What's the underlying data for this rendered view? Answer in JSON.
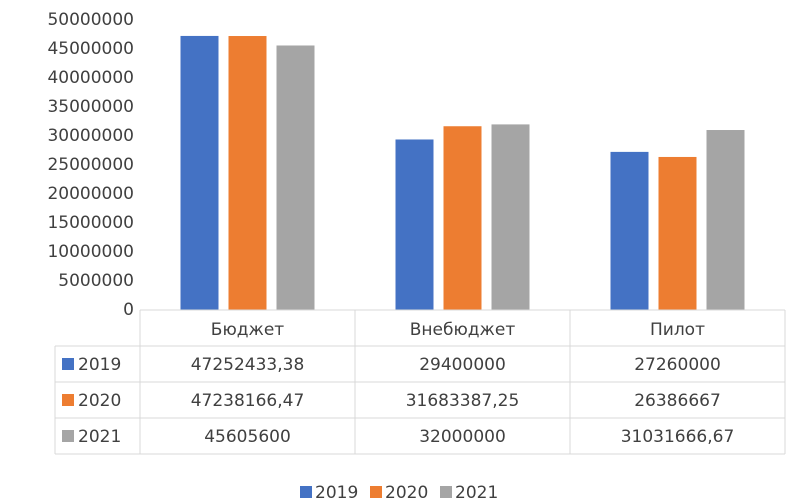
{
  "chart_data": {
    "type": "bar",
    "categories": [
      "Бюджет",
      "Внебюджет",
      "Пилот"
    ],
    "series": [
      {
        "name": "2019",
        "color": "#4472c4",
        "values": [
          47252433.38,
          29400000,
          27260000
        ],
        "value_labels": [
          "47252433,38",
          "29400000",
          "27260000"
        ]
      },
      {
        "name": "2020",
        "color": "#ed7d31",
        "values": [
          47238166.47,
          31683387.25,
          26386667
        ],
        "value_labels": [
          "47238166,47",
          "31683387,25",
          "26386667"
        ]
      },
      {
        "name": "2021",
        "color": "#a5a5a5",
        "values": [
          45605600,
          32000000,
          31031666.67
        ],
        "value_labels": [
          "45605600",
          "32000000",
          "31031666,67"
        ]
      }
    ],
    "ylim": [
      0,
      50000000
    ],
    "yticks": [
      0,
      5000000,
      10000000,
      15000000,
      20000000,
      25000000,
      30000000,
      35000000,
      40000000,
      45000000,
      50000000
    ],
    "legend": "bottom"
  }
}
